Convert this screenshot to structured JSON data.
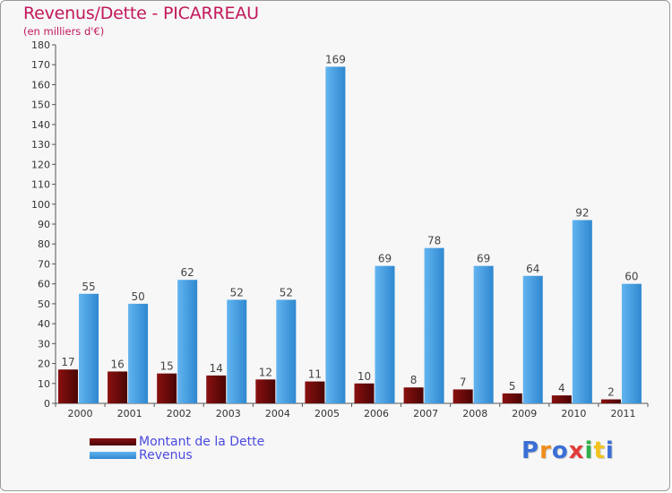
{
  "chart_data": {
    "type": "bar",
    "title": "Revenus/Dette - PICARREAU",
    "subtitle": "(en milliers d'€)",
    "categories": [
      "2000",
      "2001",
      "2002",
      "2003",
      "2004",
      "2005",
      "2006",
      "2007",
      "2008",
      "2009",
      "2010",
      "2011"
    ],
    "series": [
      {
        "name": "Montant de la Dette",
        "color": "#7a0c0c",
        "values": [
          17,
          16,
          15,
          14,
          12,
          11,
          10,
          8,
          7,
          5,
          4,
          2
        ]
      },
      {
        "name": "Revenus",
        "color": "#4ca3e6",
        "values": [
          55,
          50,
          62,
          52,
          52,
          169,
          69,
          78,
          69,
          64,
          92,
          60
        ]
      }
    ],
    "ylim": [
      0,
      180
    ],
    "yticks": [
      0,
      10,
      20,
      30,
      40,
      50,
      60,
      70,
      80,
      90,
      100,
      110,
      120,
      130,
      140,
      150,
      160,
      170,
      180
    ],
    "xlabel": "",
    "ylabel": "",
    "grid": false,
    "legend_position": "bottom-left"
  },
  "logo": {
    "letters": [
      "P",
      "r",
      "o",
      "x",
      "i",
      "t",
      "i"
    ],
    "colors": [
      "#3b6fd6",
      "#f28c1c",
      "#3b6fd6",
      "#e23b3b",
      "#2fae4a",
      "#f2c31c",
      "#3b6fd6"
    ]
  }
}
